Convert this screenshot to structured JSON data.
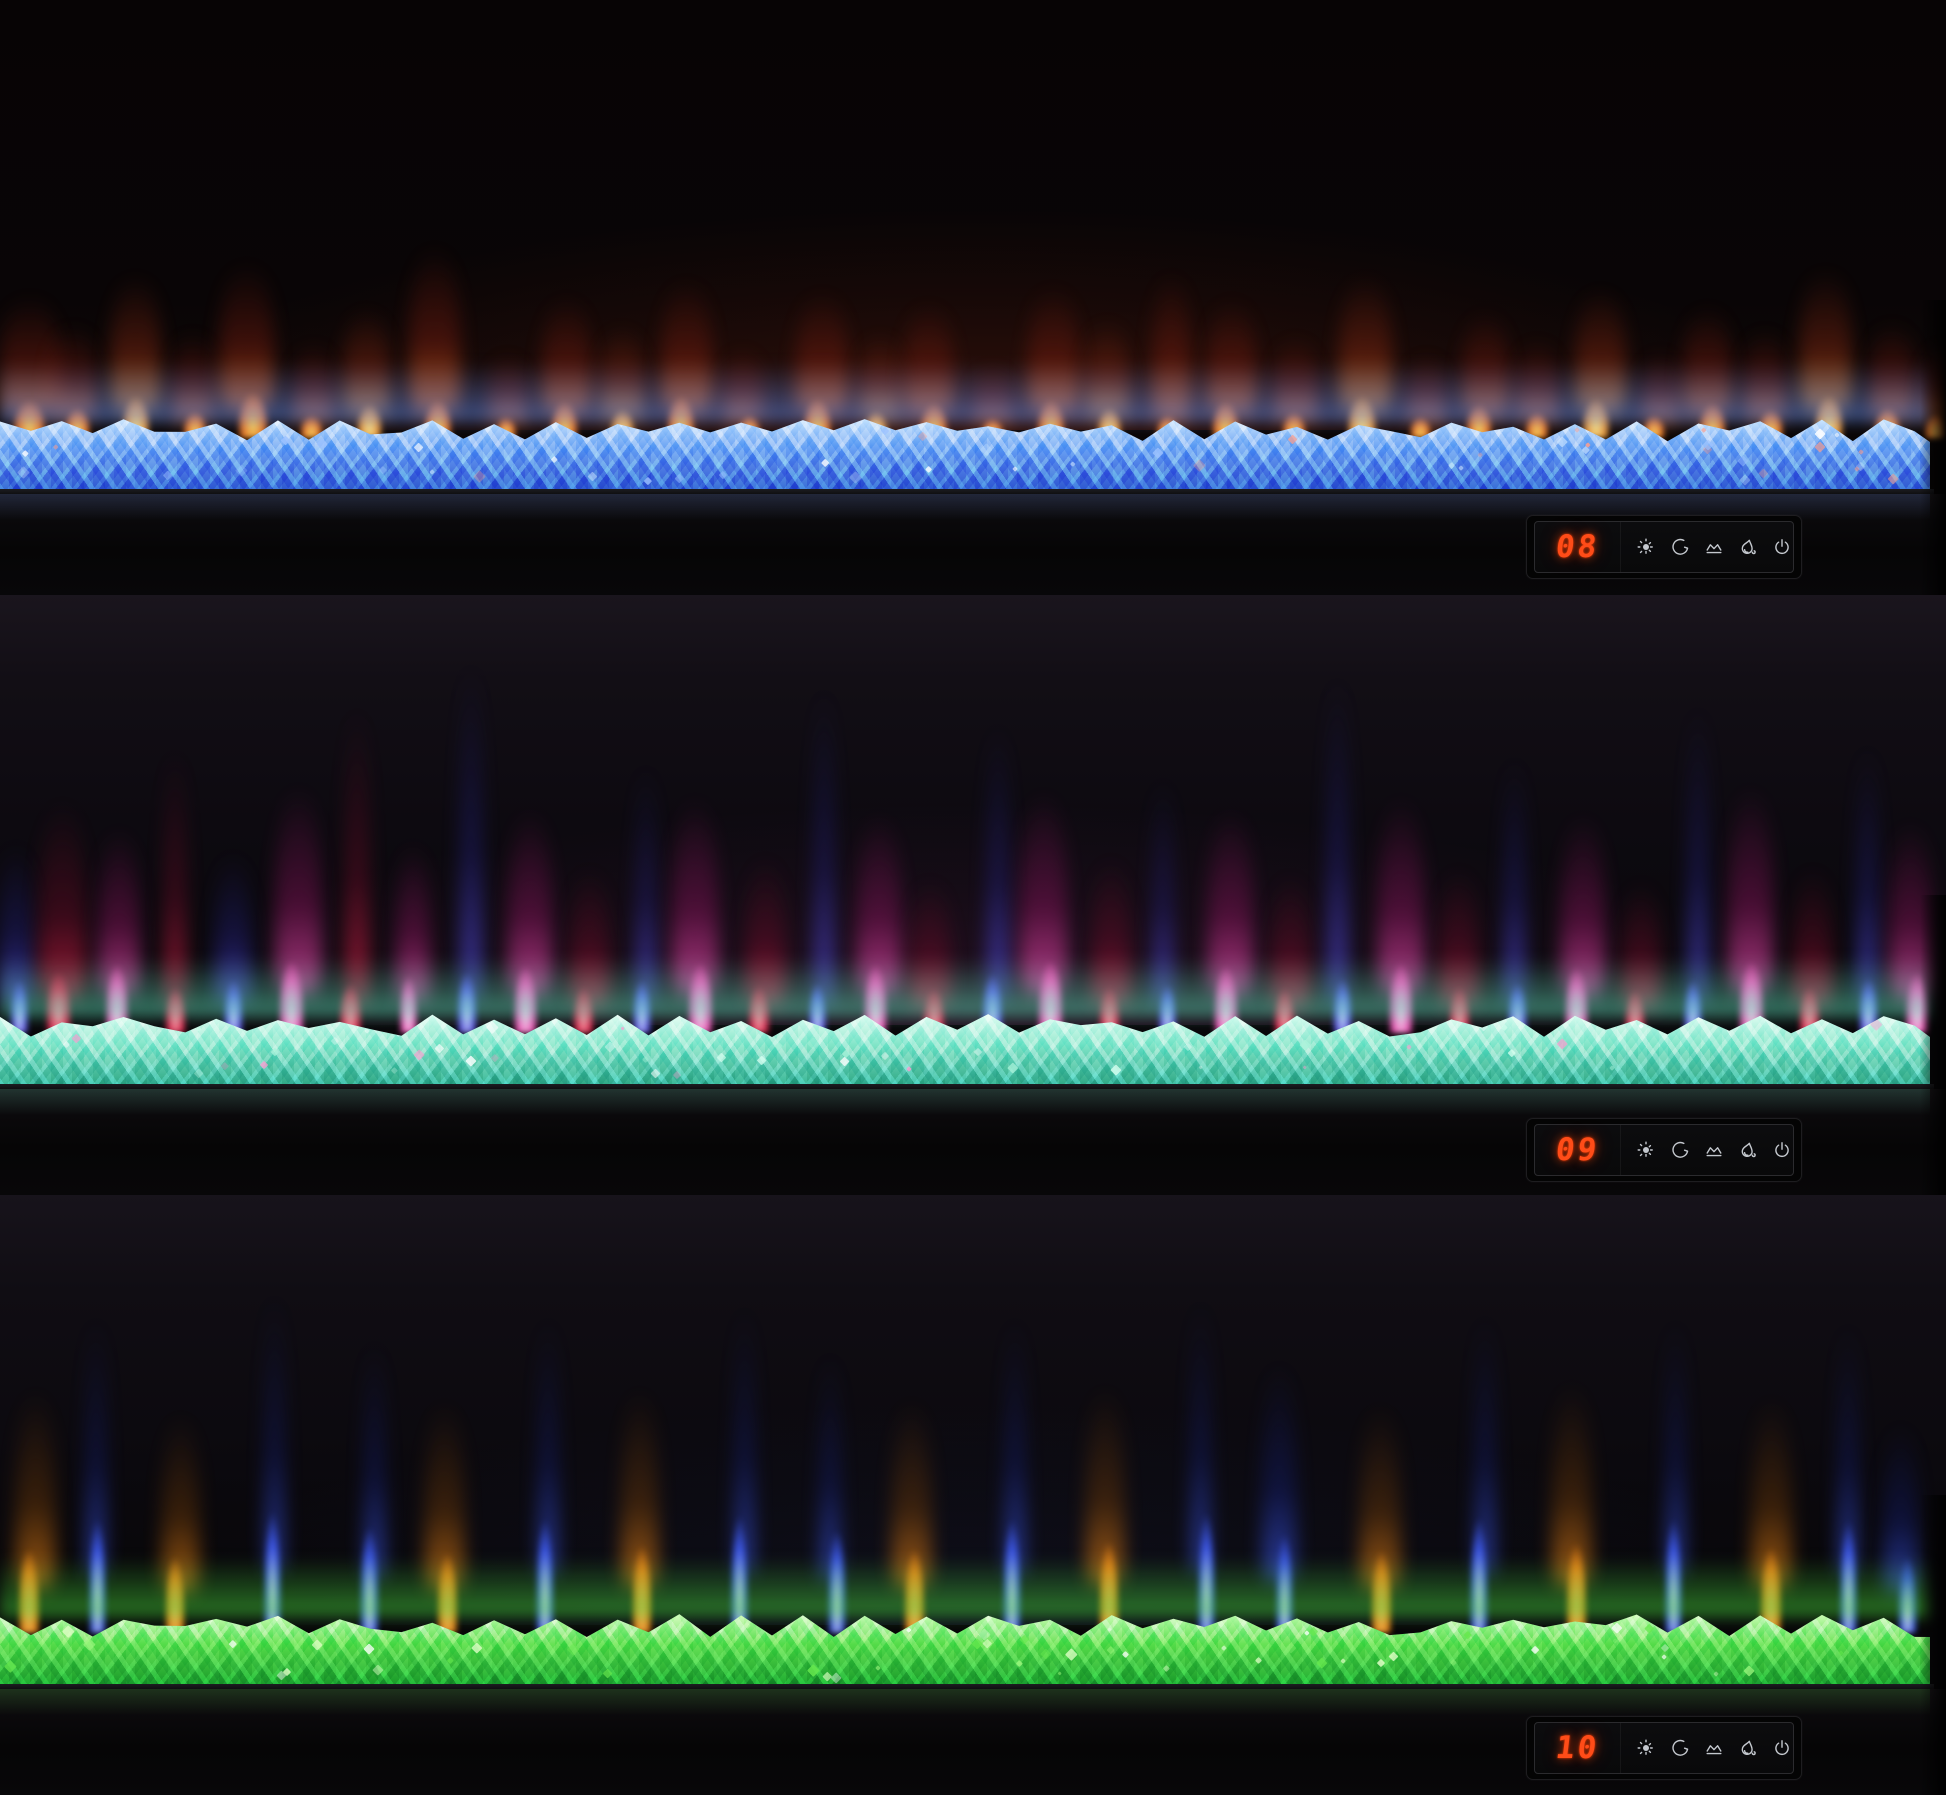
{
  "control_panel": {
    "display_color": "#ff4c18",
    "icon_color": "#c4c8ce",
    "icons": [
      {
        "name": "brightness-icon"
      },
      {
        "name": "sleep-timer-icon"
      },
      {
        "name": "flame-effect-icon"
      },
      {
        "name": "flame-color-icon"
      },
      {
        "name": "power-icon"
      }
    ]
  },
  "sections": [
    {
      "id": "setting-08",
      "display_value": "08",
      "description": "orange flames over blue crystals",
      "colors": {
        "haze": "#7a2410",
        "crystal_bright": "#d6ecff",
        "crystal_base": "#74a9f4",
        "crystal_deep": "#2f5fd2",
        "crystal_glow": "#5d8cf0"
      },
      "sparkle_colors": [
        "#ffffff",
        "#cfe6ff",
        "#9cc2ff",
        "#ff9d8a"
      ],
      "palettes": {
        "o": {
          "core": "#ffd95e",
          "mid": "#ff7f28",
          "outer": "#7d1e10"
        },
        "y": {
          "core": "#ffe98c",
          "mid": "#ffa23a",
          "outer": "#8c2a12"
        }
      },
      "flames": [
        [
          1.5,
          70,
          50,
          120,
          "o"
        ],
        [
          4,
          55,
          40,
          95,
          "o"
        ],
        [
          7,
          60,
          55,
          140,
          "y"
        ],
        [
          10,
          50,
          35,
          90,
          "o"
        ],
        [
          13,
          65,
          60,
          150,
          "o"
        ],
        [
          16,
          48,
          30,
          80,
          "o"
        ],
        [
          19,
          55,
          45,
          110,
          "y"
        ],
        [
          22.5,
          60,
          50,
          170,
          "o"
        ],
        [
          26,
          45,
          28,
          70,
          "o"
        ],
        [
          29,
          58,
          48,
          120,
          "o"
        ],
        [
          32,
          52,
          38,
          95,
          "y"
        ],
        [
          35,
          60,
          55,
          135,
          "o"
        ],
        [
          38.5,
          46,
          30,
          75,
          "o"
        ],
        [
          42,
          62,
          52,
          125,
          "o"
        ],
        [
          45,
          50,
          36,
          88,
          "y"
        ],
        [
          48,
          58,
          46,
          115,
          "o"
        ],
        [
          51,
          44,
          26,
          60,
          "o"
        ],
        [
          54,
          60,
          50,
          130,
          "o"
        ],
        [
          57,
          52,
          40,
          100,
          "y"
        ],
        [
          60,
          46,
          30,
          150,
          "o"
        ],
        [
          63,
          58,
          48,
          118,
          "o"
        ],
        [
          66.5,
          50,
          34,
          85,
          "o"
        ],
        [
          70,
          62,
          55,
          140,
          "y"
        ],
        [
          73,
          46,
          28,
          70,
          "o"
        ],
        [
          76,
          56,
          44,
          108,
          "o"
        ],
        [
          79,
          50,
          34,
          82,
          "o"
        ],
        [
          82,
          60,
          52,
          128,
          "y"
        ],
        [
          85,
          46,
          30,
          72,
          "o"
        ],
        [
          88,
          58,
          46,
          112,
          "o"
        ],
        [
          91,
          52,
          38,
          92,
          "o"
        ],
        [
          94,
          62,
          56,
          145,
          "y"
        ],
        [
          97,
          54,
          40,
          98,
          "o"
        ],
        [
          99.5,
          48,
          32,
          80,
          "o"
        ]
      ]
    },
    {
      "id": "setting-09",
      "display_value": "09",
      "description": "magenta, crimson and blue flames over teal crystals",
      "colors": {
        "haze": "#5c2150",
        "crystal_bright": "#eafff6",
        "crystal_base": "#8fe9cd",
        "crystal_deep": "#2fae8a",
        "crystal_glow": "#5fe0b8"
      },
      "sparkle_colors": [
        "#ffffff",
        "#d8fff0",
        "#aaf2da",
        "#ff9ad0"
      ],
      "palettes": {
        "p": {
          "core": "#ffd6f4",
          "mid": "#ff56c0",
          "outer": "#8f1560"
        },
        "r": {
          "core": "#ff9aa8",
          "mid": "#e8244e",
          "outer": "#6e0c28"
        },
        "b": {
          "core": "#cdd6ff",
          "mid": "#5a52f0",
          "outer": "#22207a"
        }
      },
      "flames": [
        [
          1,
          40,
          70,
          160,
          "b"
        ],
        [
          3,
          55,
          80,
          200,
          "r"
        ],
        [
          6,
          50,
          90,
          170,
          "p"
        ],
        [
          9,
          45,
          60,
          260,
          "r"
        ],
        [
          12,
          42,
          70,
          150,
          "b"
        ],
        [
          15,
          55,
          95,
          210,
          "p"
        ],
        [
          18,
          48,
          65,
          300,
          "r"
        ],
        [
          21,
          40,
          75,
          160,
          "p"
        ],
        [
          24,
          44,
          80,
          340,
          "b"
        ],
        [
          27,
          52,
          88,
          190,
          "p"
        ],
        [
          30,
          46,
          60,
          140,
          "r"
        ],
        [
          33,
          40,
          70,
          240,
          "b"
        ],
        [
          36,
          54,
          92,
          200,
          "p"
        ],
        [
          39,
          46,
          62,
          150,
          "r"
        ],
        [
          42,
          40,
          66,
          320,
          "b"
        ],
        [
          45,
          52,
          90,
          185,
          "p"
        ],
        [
          48,
          46,
          58,
          130,
          "r"
        ],
        [
          51,
          44,
          78,
          280,
          "b"
        ],
        [
          54,
          55,
          95,
          205,
          "p"
        ],
        [
          57,
          45,
          60,
          150,
          "r"
        ],
        [
          60,
          40,
          64,
          230,
          "b"
        ],
        [
          63,
          52,
          88,
          190,
          "p"
        ],
        [
          66,
          46,
          58,
          135,
          "r"
        ],
        [
          69,
          42,
          72,
          330,
          "b"
        ],
        [
          72,
          54,
          92,
          200,
          "p"
        ],
        [
          75,
          46,
          60,
          140,
          "r"
        ],
        [
          78,
          42,
          66,
          250,
          "b"
        ],
        [
          81,
          52,
          86,
          185,
          "p"
        ],
        [
          84,
          44,
          56,
          128,
          "r"
        ],
        [
          87,
          40,
          70,
          300,
          "b"
        ],
        [
          90,
          54,
          94,
          210,
          "p"
        ],
        [
          93,
          46,
          60,
          140,
          "r"
        ],
        [
          96,
          42,
          72,
          260,
          "b"
        ],
        [
          98.5,
          50,
          80,
          180,
          "p"
        ]
      ]
    },
    {
      "id": "setting-10",
      "display_value": "10",
      "description": "blue and orange flames over green crystals",
      "colors": {
        "haze": "#1c2142",
        "crystal_bright": "#d8ffc0",
        "crystal_base": "#5fe04e",
        "crystal_deep": "#17a02a",
        "crystal_glow": "#46d43a"
      },
      "sparkle_colors": [
        "#ffffff",
        "#e2ffc8",
        "#9cf77e",
        "#66e84e"
      ],
      "palettes": {
        "b": {
          "core": "#dfe8ff",
          "mid": "#3d58e8",
          "outer": "#141e6e"
        },
        "o": {
          "core": "#ffc35c",
          "mid": "#ef8718",
          "outer": "#6e3a08"
        }
      },
      "flames": [
        [
          1.5,
          46,
          110,
          200,
          "o"
        ],
        [
          5,
          40,
          150,
          260,
          "b"
        ],
        [
          9,
          44,
          100,
          180,
          "o"
        ],
        [
          14,
          38,
          160,
          280,
          "b"
        ],
        [
          19,
          42,
          140,
          240,
          "b"
        ],
        [
          23,
          46,
          105,
          190,
          "o"
        ],
        [
          28,
          40,
          150,
          260,
          "b"
        ],
        [
          33,
          44,
          115,
          200,
          "o"
        ],
        [
          38,
          38,
          155,
          270,
          "b"
        ],
        [
          43,
          40,
          135,
          230,
          "b"
        ],
        [
          47,
          46,
          110,
          190,
          "o"
        ],
        [
          52,
          40,
          150,
          260,
          "b"
        ],
        [
          57,
          44,
          120,
          200,
          "o"
        ],
        [
          62,
          38,
          158,
          275,
          "b"
        ],
        [
          66,
          40,
          130,
          220,
          "b"
        ],
        [
          71,
          46,
          108,
          185,
          "o"
        ],
        [
          76,
          40,
          152,
          262,
          "b"
        ],
        [
          81,
          46,
          118,
          205,
          "o"
        ],
        [
          86,
          38,
          150,
          258,
          "b"
        ],
        [
          91,
          46,
          112,
          192,
          "o"
        ],
        [
          95,
          40,
          148,
          255,
          "b"
        ],
        [
          98,
          42,
          100,
          170,
          "b"
        ]
      ]
    }
  ]
}
